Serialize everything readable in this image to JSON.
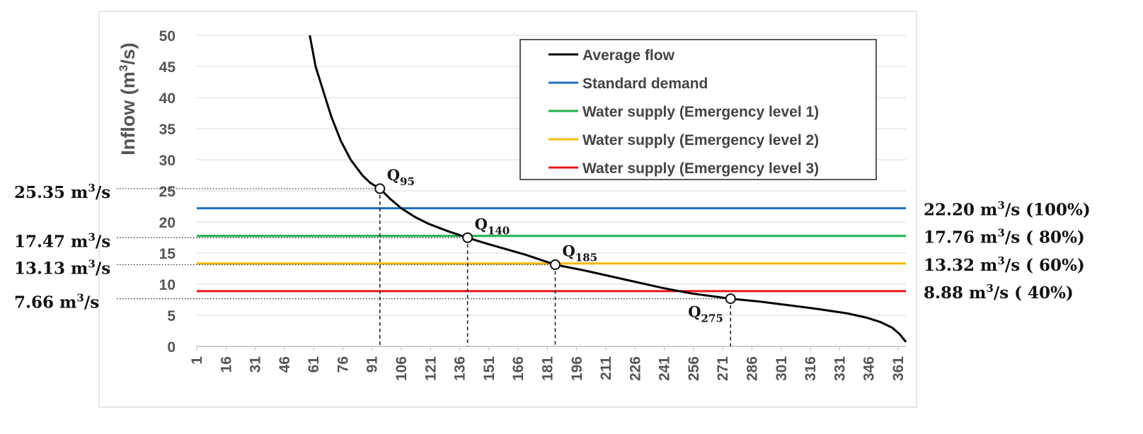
{
  "chart_data": {
    "type": "line",
    "ylabel": "Inflow (m³/s)",
    "ylim": [
      0,
      50
    ],
    "yticks": [
      "0",
      "5",
      "10",
      "15",
      "20",
      "25",
      "30",
      "35",
      "40",
      "45",
      "50"
    ],
    "xlim": [
      1,
      365
    ],
    "xticks": [
      "1",
      "16",
      "31",
      "46",
      "61",
      "76",
      "91",
      "106",
      "121",
      "136",
      "151",
      "166",
      "181",
      "196",
      "211",
      "226",
      "241",
      "256",
      "271",
      "286",
      "301",
      "316",
      "331",
      "346",
      "361"
    ],
    "series": [
      {
        "name": "Average flow",
        "color": "#000000",
        "x": [
          59,
          62,
          66,
          70,
          75,
          80,
          86,
          90,
          95,
          100,
          106,
          113,
          120,
          130,
          140,
          150,
          160,
          170,
          185,
          200,
          220,
          240,
          255,
          275,
          290,
          305,
          320,
          335,
          345,
          352,
          358,
          362,
          365
        ],
        "y": [
          50,
          45,
          41,
          37,
          33,
          30,
          27.5,
          26.3,
          25.35,
          23.8,
          22.2,
          20.8,
          19.7,
          18.5,
          17.47,
          16.5,
          15.6,
          14.7,
          13.13,
          12.2,
          10.8,
          9.4,
          8.5,
          7.66,
          7.2,
          6.6,
          6.0,
          5.3,
          4.6,
          3.9,
          3.0,
          1.9,
          0.7
        ]
      },
      {
        "name": "Standard demand",
        "color": "#1f6fc5",
        "value": 22.2
      },
      {
        "name": "Water supply (Emergency level 1)",
        "color": "#22b04b",
        "value": 17.76
      },
      {
        "name": "Water supply (Emergency level 2)",
        "color": "#f5b800",
        "value": 13.32
      },
      {
        "name": "Water supply (Emergency level 3)",
        "color": "#e8141c",
        "value": 8.88
      }
    ],
    "points": [
      {
        "name": "Q95",
        "sym": "Q",
        "sub": "95",
        "x": 95,
        "y": 25.35,
        "left_label": "25.35",
        "pos": "above-right"
      },
      {
        "name": "Q140",
        "sym": "Q",
        "sub": "140",
        "x": 140,
        "y": 17.47,
        "left_label": "17.47",
        "pos": "above-right"
      },
      {
        "name": "Q185",
        "sym": "Q",
        "sub": "185",
        "x": 185,
        "y": 13.13,
        "left_label": "13.13",
        "pos": "above-right"
      },
      {
        "name": "Q275",
        "sym": "Q",
        "sub": "275",
        "x": 275,
        "y": 7.66,
        "left_label": "7.66",
        "pos": "below-left"
      }
    ],
    "unit_main": "m",
    "unit_sup": "3",
    "unit_tail": "/s",
    "right_labels": [
      {
        "value": "22.20",
        "pct": "(100%)"
      },
      {
        "value": "17.76",
        "pct": "( 80%)"
      },
      {
        "value": "13.32",
        "pct": "( 60%)"
      },
      {
        "value": "8.88",
        "pct": "( 40%)"
      }
    ],
    "legend_position": "top-right",
    "grid": true
  }
}
